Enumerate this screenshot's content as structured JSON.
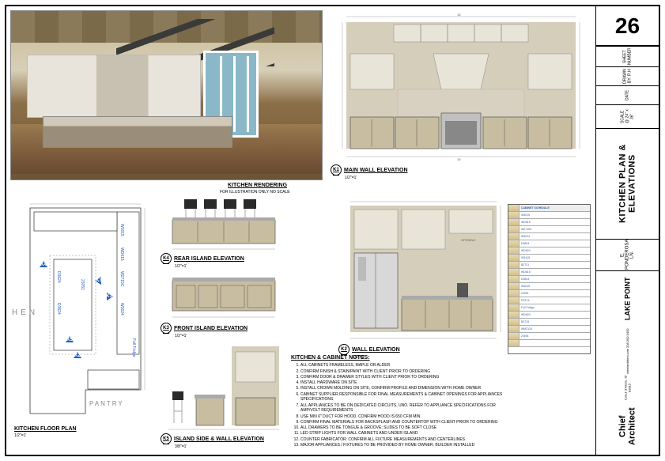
{
  "titleblock": {
    "sheet_number": "26",
    "sheet_label": "SHEET NUMBER",
    "scale": "SCALE @ 24\" x 36\"",
    "date_label": "DATE",
    "drawn_label": "DRAWN BY: R.H",
    "sheet_title": "KITCHEN PLAN & ELEVATIONS",
    "project_addr": "E. PONDEROSA LN.",
    "project_name": "LAKE POINT",
    "firm": "Chief Architect",
    "firm_addr": "Coeur d'Alene, ID 83815",
    "firm_web": "chiefarchitect.com",
    "firm_phone": "208.300.5400"
  },
  "render": {
    "title": "KITCHEN RENDERING",
    "sub": "FOR ILLUSTRATION ONLY          NO SCALE"
  },
  "elevations": {
    "k1": {
      "tag": "K1",
      "title": "MAIN WALL ELEVATION",
      "scale": "1/2\"=1'"
    },
    "k2": {
      "tag": "K2",
      "title": "WALL ELEVATION",
      "scale": "1/2\"=1'"
    },
    "k3": {
      "tag": "K3",
      "title": "FRONT ISLAND ELEVATION",
      "scale": "1/2\"=1'"
    },
    "k4": {
      "tag": "K4",
      "title": "REAR ISLAND ELEVATION",
      "scale": "1/2\"=1'"
    },
    "k5": {
      "tag": "K5",
      "title": "ISLAND SIDE & WALL ELEVATION",
      "scale": "3/8\"=1'"
    }
  },
  "plan": {
    "title": "KITCHEN FLOOR PLAN",
    "scale": "1/2\"=1'",
    "room_left": "HEN",
    "room_bottom": "PANTRY",
    "cameras": [
      "K1",
      "K2",
      "K3",
      "K4",
      "K5"
    ],
    "cabinet_labels": [
      "W3015",
      "WD615",
      "W2715C",
      "W3024",
      "D3624",
      "WD624",
      "W3415",
      "B2721",
      "WD615",
      "D3624",
      "W3015",
      "23051",
      "FRT14",
      "Full Fridge",
      "WD624",
      "B2724",
      "WM2124",
      "23051"
    ]
  },
  "notes": {
    "title": "KITCHEN & CABINET NOTES:",
    "items": [
      "ALL CABINETS FRAMELESS, MAPLE OR ALDER",
      "CONFIRM FINISH & STAIN/PAINT WITH CLIENT PRIOR TO ORDERING",
      "CONFIRM DOOR & DRAWER STYLES WITH CLIENT PRIOR TO ORDERING",
      "INSTALL HARDWARE ON SITE",
      "INSTALL CROWN MOLDING ON SITE; CONFIRM PROFILE AND DIMENSION WITH HOME OWNER",
      "CABINET SUPPLIER RESPONSIBLE FOR FINAL MEASUREMENTS & CABINET OPENINGS FOR APPLIANCES SPECIFICATIONS",
      "ALL APPLIANCES TO BE ON DEDICATED CIRCUITS, UNO.  REFER TO APPLIANCE SPECIFICATIONS FOR AMP/VOLT REQUIREMENTS",
      "USE MIN 6\" DUCT FOR HOOD.  CONFIRM HOOD IS 650 CFM MIN.",
      "CONFIRM FINAL MATERIALS FOR BACKSPLASH AND COUNTERTOP WITH CLIENT PRIOR TO ORDERING",
      "ALL DRAWERS TO BE TONGUE & GROOVE; SLIDES TO BE SOFT CLOSE",
      "LED STRIP LIGHTS FOR WALL CABINETS AND UNDER ISLAND",
      "COUNTER FABRICATOR: CONFIRM ALL FIXTURE MEASUREMENTS AND CENTERLINES",
      "MAJOR APPLIANCES / FIXTURES TO BE PROVIDED BY HOME OWNER; BUILDER INSTALLED"
    ]
  },
  "schedule": {
    "rows": 20
  },
  "colors": {
    "cabinet": "#c8bda0",
    "upper": "#e8e4d8",
    "wall": "#d4ceba",
    "accent_blue": "#2060c0",
    "dim": "#888888"
  }
}
